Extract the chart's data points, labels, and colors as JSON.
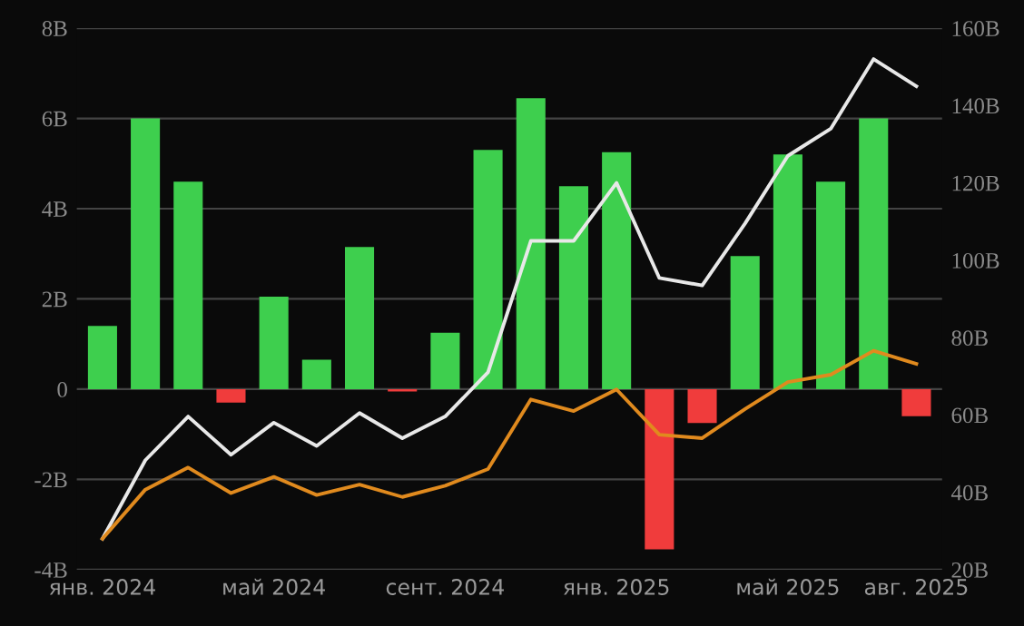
{
  "chart_data": {
    "type": "bar",
    "categories": [
      "янв. 2024",
      null,
      null,
      null,
      "май 2024",
      null,
      null,
      null,
      "сент. 2024",
      null,
      null,
      null,
      "янв. 2025",
      null,
      null,
      null,
      "май 2025",
      null,
      null,
      "авг. 2025"
    ],
    "series": [
      {
        "values": [
          1.4,
          6.0,
          4.6,
          -0.3,
          2.05,
          0.65,
          3.15,
          -0.05,
          1.25,
          5.3,
          6.45,
          4.5,
          5.25,
          -3.55,
          -0.75,
          2.95,
          5.2,
          4.6,
          6.0,
          -0.6
        ],
        "colors": [
          "#3ecf4e",
          "#3ecf4e",
          "#3ecf4e",
          "#f03c3c",
          "#3ecf4e",
          "#3ecf4e",
          "#3ecf4e",
          "#f03c3c",
          "#3ecf4e",
          "#3ecf4e",
          "#3ecf4e",
          "#3ecf4e",
          "#3ecf4e",
          "#f03c3c",
          "#f03c3c",
          "#3ecf4e",
          "#3ecf4e",
          "#3ecf4e",
          "#3ecf4e",
          "#f03c3c"
        ]
      },
      {
        "type": "line",
        "axis": "y2",
        "color": "#e8e8e8",
        "values": [
          28,
          48.3,
          59.6,
          49.7,
          58,
          52,
          60.5,
          54,
          59.6,
          71,
          105,
          105,
          120,
          95.4,
          93.5,
          109.5,
          127,
          134,
          152,
          145
        ]
      },
      {
        "type": "line",
        "axis": "y2",
        "color": "#e08a1e",
        "values": [
          28,
          40.7,
          46.4,
          39.8,
          44,
          39.3,
          42,
          38.8,
          41.7,
          46,
          64,
          61,
          66.6,
          54.9,
          54,
          61.5,
          68.5,
          70.4,
          76.6,
          73.2
        ]
      }
    ],
    "ylim": [
      -4,
      8
    ],
    "yticks": [
      {
        "value": -4,
        "label": "-4B"
      },
      {
        "value": -2,
        "label": "-2B"
      },
      0,
      {
        "value": 2,
        "label": "2B"
      },
      {
        "value": 4,
        "label": "4B"
      },
      {
        "value": 6,
        "label": "6B"
      },
      {
        "value": 8,
        "label": "8B"
      }
    ],
    "y2lim": [
      20,
      160
    ],
    "y2ticks": [
      {
        "value": 20,
        "label": "20B"
      },
      {
        "value": 40,
        "label": "40B"
      },
      {
        "value": 60,
        "label": "60B"
      },
      {
        "value": 80,
        "label": "80B"
      },
      {
        "value": 100,
        "label": "100B"
      },
      {
        "value": 120,
        "label": "120B"
      },
      {
        "value": 140,
        "label": "140B"
      },
      {
        "value": 160,
        "label": "160B"
      }
    ],
    "grid": "y",
    "legend": false,
    "marker": "none",
    "line_style": "solid"
  }
}
